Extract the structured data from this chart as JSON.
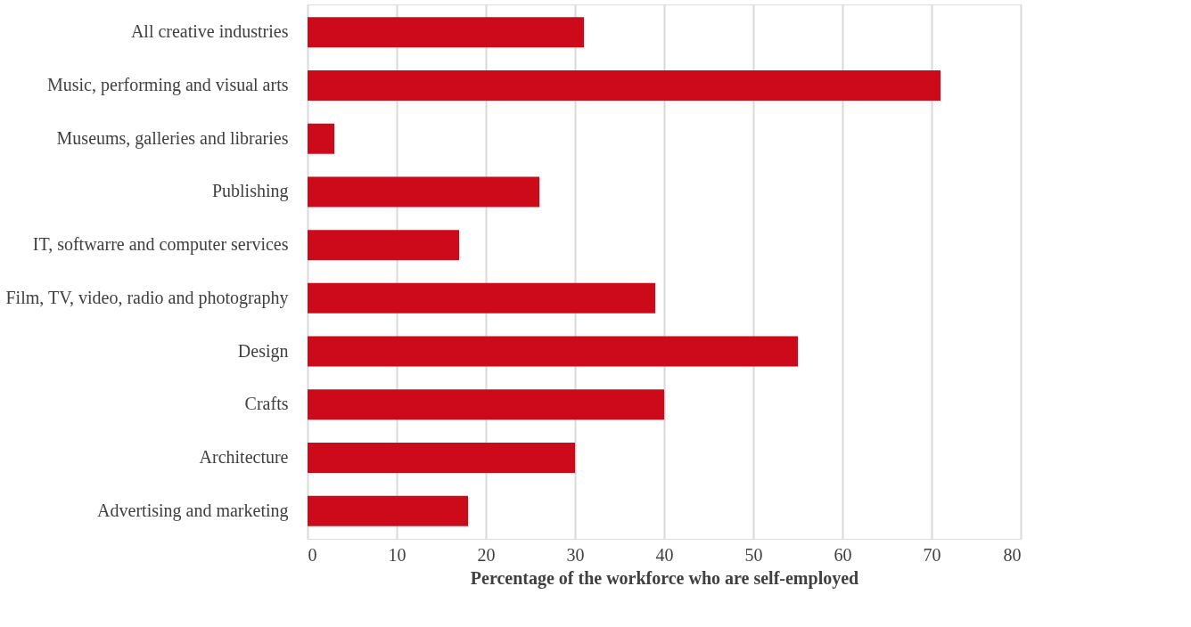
{
  "chart_data": {
    "type": "bar",
    "orientation": "horizontal",
    "xlabel": "Percentage of the workforce who are self-employed",
    "categories": [
      "All creative industries",
      "Music, performing and visual arts",
      "Museums, galleries and libraries",
      "Publishing",
      "IT, softwarre and computer services",
      "Film, TV, video, radio and photography",
      "Design",
      "Crafts",
      "Architecture",
      "Advertising and marketing"
    ],
    "values": [
      31,
      71,
      3,
      26,
      17,
      39,
      55,
      40,
      30,
      18
    ],
    "color": "#cc0a1a",
    "xlim": [
      0,
      80
    ],
    "xticks": [
      0,
      10,
      20,
      30,
      40,
      50,
      60,
      70,
      80
    ],
    "grid": "x"
  }
}
